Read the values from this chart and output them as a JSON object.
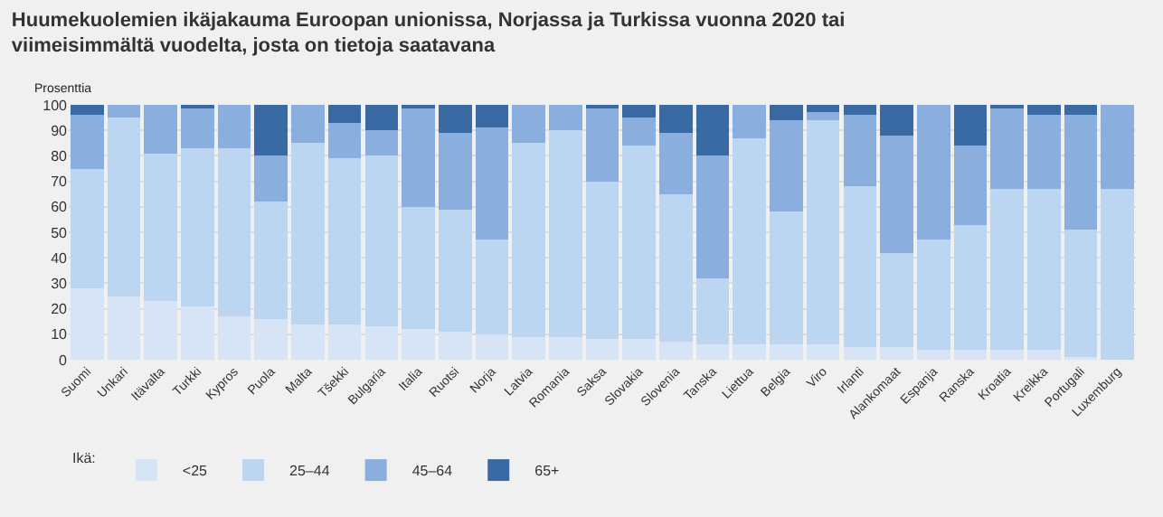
{
  "chart_data": {
    "type": "bar",
    "stacked": true,
    "title": "Huumekuolemien ikäjakauma Euroopan unionissa, Norjassa ja Turkissa vuonna 2020 tai viimeisimmältä vuodelta, josta on tietoja saatavana",
    "ylabel": "Prosenttia",
    "legend_title": "Ikä:",
    "categories": [
      "Suomi",
      "Unkari",
      "Itävalta",
      "Turkki",
      "Kypros",
      "Puola",
      "Malta",
      "Tšekki",
      "Bulgaria",
      "Italia",
      "Ruotsi",
      "Norja",
      "Latvia",
      "Romania",
      "Saksa",
      "Slovakia",
      "Slovenia",
      "Tanska",
      "Liettua",
      "Belgia",
      "Viro",
      "Irlanti",
      "Alankomaat",
      "Espanja",
      "Ranska",
      "Kroatia",
      "Kreikka",
      "Portugali",
      "Luxemburg"
    ],
    "series": [
      {
        "name": "<25",
        "color": "#d6e4f5",
        "values": [
          28,
          25,
          23,
          21,
          17,
          16,
          14,
          14,
          13,
          12,
          11,
          10,
          9,
          9,
          8,
          8,
          7,
          6,
          6,
          6,
          6,
          5,
          5,
          4,
          4,
          4,
          4,
          1,
          0
        ]
      },
      {
        "name": "25–44",
        "color": "#bcd5f0",
        "values": [
          47,
          70,
          58,
          62,
          66,
          46,
          71,
          65,
          67,
          48,
          48,
          37,
          76,
          81,
          62,
          76,
          58,
          26,
          81,
          52,
          88,
          63,
          37,
          43,
          49,
          63,
          63,
          50,
          67
        ]
      },
      {
        "name": "45–64",
        "color": "#8aafdf",
        "values": [
          21,
          5,
          19,
          16,
          17,
          18,
          15,
          14,
          10,
          39,
          30,
          44,
          15,
          10,
          29,
          11,
          24,
          48,
          13,
          36,
          3,
          28,
          46,
          53,
          31,
          32,
          29,
          45,
          33
        ]
      },
      {
        "name": "65+",
        "color": "#3a6aa3",
        "values": [
          4,
          0,
          0,
          1,
          0,
          20,
          0,
          7,
          10,
          1,
          11,
          9,
          0,
          0,
          1,
          5,
          11,
          20,
          0,
          6,
          3,
          4,
          12,
          0,
          16,
          1,
          4,
          4,
          0
        ]
      }
    ],
    "ylim": [
      0,
      100
    ],
    "yticks": [
      0,
      10,
      20,
      30,
      40,
      50,
      60,
      70,
      80,
      90,
      100
    ],
    "grid": "y",
    "legend": "bottom left"
  }
}
